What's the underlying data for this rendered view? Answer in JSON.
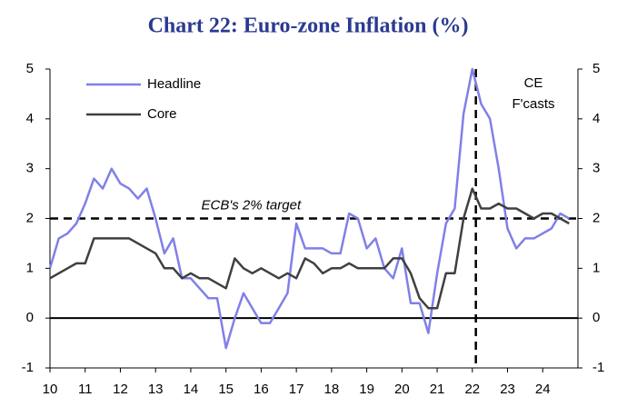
{
  "chart_data": {
    "type": "line",
    "title": "Chart 22: Euro-zone Inflation (%)",
    "x": [
      10,
      10.25,
      10.5,
      10.75,
      11,
      11.25,
      11.5,
      11.75,
      12,
      12.25,
      12.5,
      12.75,
      13,
      13.25,
      13.5,
      13.75,
      14,
      14.25,
      14.5,
      14.75,
      15,
      15.25,
      15.5,
      15.75,
      16,
      16.25,
      16.5,
      16.75,
      17,
      17.25,
      17.5,
      17.75,
      18,
      18.25,
      18.5,
      18.75,
      19,
      19.25,
      19.5,
      19.75,
      20,
      20.25,
      20.5,
      20.75,
      21,
      21.25,
      21.5,
      21.75,
      22,
      22.25,
      22.5,
      22.75,
      23,
      23.25,
      23.5,
      23.75,
      24,
      24.25,
      24.5,
      24.75
    ],
    "series": [
      {
        "name": "Headline",
        "color": "#8080e8",
        "values": [
          1.0,
          1.6,
          1.7,
          1.9,
          2.3,
          2.8,
          2.6,
          3.0,
          2.7,
          2.6,
          2.4,
          2.6,
          2.0,
          1.3,
          1.6,
          0.8,
          0.8,
          0.6,
          0.4,
          0.4,
          -0.6,
          0.0,
          0.5,
          0.2,
          -0.1,
          -0.1,
          0.2,
          0.5,
          1.9,
          1.4,
          1.4,
          1.4,
          1.3,
          1.3,
          2.1,
          2.0,
          1.4,
          1.6,
          1.0,
          0.8,
          1.4,
          0.3,
          0.3,
          -0.3,
          0.9,
          1.9,
          2.2,
          4.1,
          5.0,
          4.3,
          4.0,
          3.0,
          1.8,
          1.4,
          1.6,
          1.6,
          1.7,
          1.8,
          2.1,
          2.0
        ]
      },
      {
        "name": "Core",
        "color": "#404040",
        "values": [
          0.8,
          0.9,
          1.0,
          1.1,
          1.1,
          1.6,
          1.6,
          1.6,
          1.6,
          1.6,
          1.5,
          1.4,
          1.3,
          1.0,
          1.0,
          0.8,
          0.9,
          0.8,
          0.8,
          0.7,
          0.6,
          1.2,
          1.0,
          0.9,
          1.0,
          0.9,
          0.8,
          0.9,
          0.8,
          1.2,
          1.1,
          0.9,
          1.0,
          1.0,
          1.1,
          1.0,
          1.0,
          1.0,
          1.0,
          1.2,
          1.2,
          0.9,
          0.4,
          0.2,
          0.2,
          0.9,
          0.9,
          2.0,
          2.6,
          2.2,
          2.2,
          2.3,
          2.2,
          2.2,
          2.1,
          2.0,
          2.1,
          2.1,
          2.0,
          1.9
        ]
      }
    ],
    "xlim": [
      10,
      25
    ],
    "xticks": [
      10,
      11,
      12,
      13,
      14,
      15,
      16,
      17,
      18,
      19,
      20,
      21,
      22,
      23,
      24
    ],
    "ylim": [
      -1,
      5
    ],
    "yticks": [
      -1,
      0,
      1,
      2,
      3,
      4,
      5
    ],
    "y2lim": [
      -1,
      5
    ],
    "y2ticks": [
      -1,
      0,
      1,
      2,
      3,
      4,
      5
    ],
    "target_label": "ECB's 2% target",
    "target_value": 2,
    "forecast_label": [
      "CE",
      "F'casts"
    ],
    "forecast_start": 22.1
  }
}
